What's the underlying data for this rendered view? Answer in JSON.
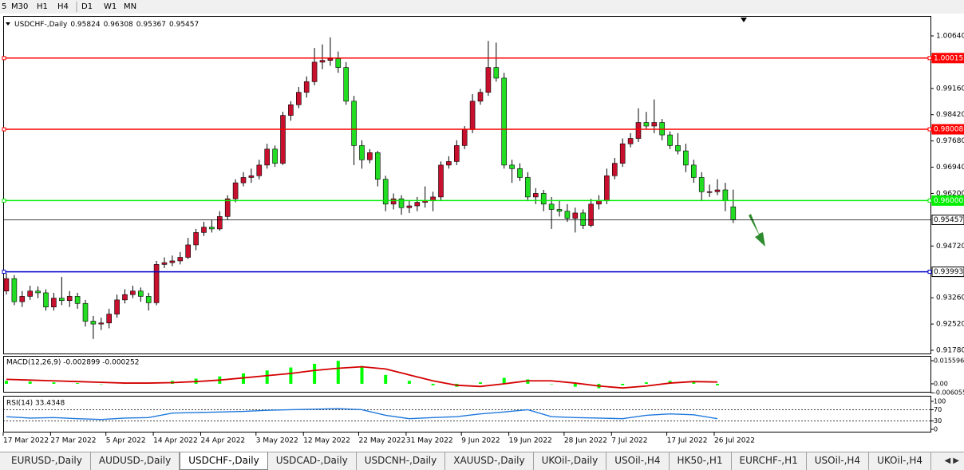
{
  "toolbar": {
    "buttons": [
      "5",
      "M30",
      "H1",
      "H4",
      "D1",
      "W1",
      "MN"
    ]
  },
  "chart": {
    "symbol": "USDCHF-,Daily",
    "candle_bull_color": "#c8102e",
    "candle_bear_color": "#22dd22",
    "ylim": [
      0.9169,
      1.0118
    ],
    "yticks": [
      {
        "value": 1.0064,
        "label": "1.00640"
      },
      {
        "value": 0.9916,
        "label": "0.99160"
      },
      {
        "value": 0.9842,
        "label": "0.98420"
      },
      {
        "value": 0.9768,
        "label": "0.97680"
      },
      {
        "value": 0.9694,
        "label": "0.96940"
      },
      {
        "value": 0.962,
        "label": "0.96200"
      },
      {
        "value": 0.9472,
        "label": "0.94720"
      },
      {
        "value": 0.9326,
        "label": "0.93260"
      },
      {
        "value": 0.9252,
        "label": "0.92520"
      },
      {
        "value": 0.9178,
        "label": "0.91780"
      }
    ],
    "levels": [
      {
        "value": 1.00015,
        "color": "#ff0000"
      },
      {
        "value": 0.98008,
        "color": "#ff0000"
      },
      {
        "value": 0.96,
        "label": "0.96000",
        "color": "#00ee00"
      },
      {
        "value": 0.93993,
        "color": "#0000cc"
      }
    ],
    "candles": [
      [
        0.9345,
        0.9395,
        0.9335,
        0.938
      ],
      [
        0.938,
        0.939,
        0.9305,
        0.9315
      ],
      [
        0.9315,
        0.9345,
        0.93,
        0.933
      ],
      [
        0.933,
        0.936,
        0.932,
        0.9345
      ],
      [
        0.9345,
        0.9358,
        0.9325,
        0.934
      ],
      [
        0.934,
        0.935,
        0.929,
        0.93
      ],
      [
        0.93,
        0.934,
        0.929,
        0.9325
      ],
      [
        0.9325,
        0.9385,
        0.9305,
        0.9318
      ],
      [
        0.9318,
        0.9345,
        0.93,
        0.933
      ],
      [
        0.933,
        0.934,
        0.9295,
        0.931
      ],
      [
        0.931,
        0.932,
        0.9245,
        0.926
      ],
      [
        0.926,
        0.9275,
        0.921,
        0.9252
      ],
      [
        0.9252,
        0.927,
        0.9235,
        0.9255
      ],
      [
        0.9255,
        0.9295,
        0.924,
        0.928
      ],
      [
        0.928,
        0.9335,
        0.927,
        0.932
      ],
      [
        0.932,
        0.935,
        0.931,
        0.9335
      ],
      [
        0.9335,
        0.936,
        0.9325,
        0.9345
      ],
      [
        0.9345,
        0.9355,
        0.9315,
        0.933
      ],
      [
        0.933,
        0.934,
        0.929,
        0.9312
      ],
      [
        0.9312,
        0.943,
        0.9305,
        0.942
      ],
      [
        0.942,
        0.944,
        0.941,
        0.9425
      ],
      [
        0.9425,
        0.9445,
        0.9415,
        0.943
      ],
      [
        0.943,
        0.9455,
        0.942,
        0.944
      ],
      [
        0.944,
        0.9495,
        0.9435,
        0.9475
      ],
      [
        0.9475,
        0.952,
        0.946,
        0.951
      ],
      [
        0.951,
        0.954,
        0.95,
        0.9525
      ],
      [
        0.9525,
        0.9545,
        0.951,
        0.952
      ],
      [
        0.952,
        0.957,
        0.9515,
        0.9555
      ],
      [
        0.9555,
        0.9615,
        0.9545,
        0.9605
      ],
      [
        0.9605,
        0.966,
        0.9595,
        0.965
      ],
      [
        0.965,
        0.968,
        0.964,
        0.9665
      ],
      [
        0.9665,
        0.969,
        0.965,
        0.967
      ],
      [
        0.967,
        0.9715,
        0.966,
        0.97
      ],
      [
        0.97,
        0.976,
        0.969,
        0.9745
      ],
      [
        0.9745,
        0.9755,
        0.9695,
        0.9705
      ],
      [
        0.9705,
        0.985,
        0.97,
        0.984
      ],
      [
        0.984,
        0.988,
        0.9825,
        0.987
      ],
      [
        0.987,
        0.992,
        0.986,
        0.9905
      ],
      [
        0.9905,
        0.995,
        0.989,
        0.9935
      ],
      [
        0.9935,
        1.003,
        0.9925,
        0.999
      ],
      [
        0.999,
        1.004,
        0.997,
        0.9995
      ],
      [
        0.9995,
        1.006,
        0.998,
        1.0
      ],
      [
        1.0,
        1.002,
        0.996,
        0.9975
      ],
      [
        0.9975,
        0.999,
        0.987,
        0.988
      ],
      [
        0.988,
        0.9895,
        0.97,
        0.9755
      ],
      [
        0.9755,
        0.977,
        0.969,
        0.9715
      ],
      [
        0.9715,
        0.9745,
        0.9705,
        0.9735
      ],
      [
        0.9735,
        0.974,
        0.964,
        0.966
      ],
      [
        0.966,
        0.967,
        0.957,
        0.959
      ],
      [
        0.959,
        0.962,
        0.9575,
        0.9605
      ],
      [
        0.9605,
        0.9615,
        0.956,
        0.958
      ],
      [
        0.958,
        0.96,
        0.9565,
        0.9585
      ],
      [
        0.9585,
        0.961,
        0.957,
        0.9595
      ],
      [
        0.9595,
        0.964,
        0.958,
        0.96
      ],
      [
        0.96,
        0.9625,
        0.957,
        0.961
      ],
      [
        0.961,
        0.971,
        0.96,
        0.97
      ],
      [
        0.97,
        0.9725,
        0.969,
        0.971
      ],
      [
        0.971,
        0.977,
        0.97,
        0.9755
      ],
      [
        0.9755,
        0.981,
        0.9745,
        0.98
      ],
      [
        0.98,
        0.99,
        0.979,
        0.988
      ],
      [
        0.988,
        0.9915,
        0.987,
        0.9905
      ],
      [
        0.9905,
        1.005,
        0.9895,
        0.9975
      ],
      [
        0.9975,
        1.0045,
        0.9935,
        0.9945
      ],
      [
        0.9945,
        0.996,
        0.969,
        0.97
      ],
      [
        0.97,
        0.9715,
        0.965,
        0.969
      ],
      [
        0.969,
        0.9705,
        0.9655,
        0.9665
      ],
      [
        0.9665,
        0.968,
        0.96,
        0.961
      ],
      [
        0.961,
        0.9635,
        0.959,
        0.962
      ],
      [
        0.962,
        0.963,
        0.957,
        0.959
      ],
      [
        0.959,
        0.961,
        0.952,
        0.9575
      ],
      [
        0.9575,
        0.96,
        0.9555,
        0.957
      ],
      [
        0.957,
        0.959,
        0.954,
        0.955
      ],
      [
        0.955,
        0.958,
        0.951,
        0.9565
      ],
      [
        0.9565,
        0.9575,
        0.952,
        0.953
      ],
      [
        0.953,
        0.9605,
        0.9525,
        0.959
      ],
      [
        0.959,
        0.9615,
        0.9575,
        0.96
      ],
      [
        0.96,
        0.969,
        0.959,
        0.967
      ],
      [
        0.967,
        0.972,
        0.966,
        0.9705
      ],
      [
        0.9705,
        0.9775,
        0.9695,
        0.976
      ],
      [
        0.976,
        0.979,
        0.975,
        0.9775
      ],
      [
        0.9775,
        0.986,
        0.9765,
        0.982
      ],
      [
        0.982,
        0.985,
        0.98,
        0.981
      ],
      [
        0.981,
        0.9885,
        0.979,
        0.982
      ],
      [
        0.982,
        0.983,
        0.977,
        0.9785
      ],
      [
        0.9785,
        0.9795,
        0.9745,
        0.9755
      ],
      [
        0.9755,
        0.979,
        0.973,
        0.974
      ],
      [
        0.974,
        0.976,
        0.968,
        0.97
      ],
      [
        0.97,
        0.9715,
        0.965,
        0.9665
      ],
      [
        0.9665,
        0.968,
        0.96,
        0.9625
      ],
      [
        0.9625,
        0.9645,
        0.961,
        0.9625
      ],
      [
        0.9625,
        0.966,
        0.9615,
        0.963
      ],
      [
        0.963,
        0.965,
        0.957,
        0.96
      ],
      [
        0.95824,
        0.96308,
        0.95367,
        0.95457
      ]
    ],
    "date_labels": [
      {
        "index": 0,
        "label": "17 Mar 2022"
      },
      {
        "index": 6,
        "label": "27 Mar 2022"
      },
      {
        "index": 13,
        "label": "5 Apr 2022"
      },
      {
        "index": 19,
        "label": "14 Apr 2022"
      },
      {
        "index": 25,
        "label": "24 Apr 2022"
      },
      {
        "index": 32,
        "label": "3 May 2022"
      },
      {
        "index": 38,
        "label": "12 May 2022"
      },
      {
        "index": 45,
        "label": "22 May 2022"
      },
      {
        "index": 51,
        "label": "31 May 2022"
      },
      {
        "index": 58,
        "label": "9 Jun 2022"
      },
      {
        "index": 64,
        "label": "19 Jun 2022"
      },
      {
        "index": 71,
        "label": "28 Jun 2022"
      },
      {
        "index": 77,
        "label": "7 Jul 2022"
      },
      {
        "index": 84,
        "label": "17 Jul 2022"
      },
      {
        "index": 90,
        "label": "26 Jul 2022"
      }
    ],
    "sample_index": [
      0,
      3,
      6,
      9,
      12,
      15,
      18,
      21,
      24,
      27,
      30,
      33,
      36,
      39,
      42,
      45,
      48,
      51,
      54,
      57,
      60,
      63,
      66,
      69,
      72,
      75,
      78,
      81,
      84,
      87,
      90
    ],
    "macd": {
      "label": "MACD(12,26,9) -0.002899 -0.000252",
      "ylim": [
        -0.0054,
        0.0183
      ],
      "yticks": [
        0.015596,
        {
          "value": 0,
          "label": "0.00"
        },
        -0.006055
      ],
      "histogram_color": "#00ff00",
      "signal_color": "#d40000",
      "histogram": [
        0.002,
        0.0015,
        0.001,
        0.0005,
        0,
        0.0002,
        0.0005,
        0.002,
        0.0035,
        0.005,
        0.007,
        0.009,
        0.011,
        0.0135,
        0.0155,
        0.012,
        0.006,
        0.002,
        -0.001,
        -0.002,
        0.001,
        0.004,
        0.003,
        0,
        -0.002,
        -0.003,
        -0.001,
        0.001,
        0.002,
        0.001,
        -0.001
      ],
      "signal": [
        0.003,
        0.0025,
        0.002,
        0.0015,
        0.001,
        0.0005,
        0.0005,
        0.0008,
        0.0015,
        0.0025,
        0.004,
        0.0055,
        0.007,
        0.009,
        0.0105,
        0.0115,
        0.01,
        0.006,
        0.002,
        -0.001,
        -0.0018,
        0,
        0.002,
        0.002,
        0.0005,
        -0.0015,
        -0.0028,
        -0.0015,
        0.0005,
        0.0015,
        0.0012
      ]
    },
    "rsi": {
      "label": "RSI(14) 33.4348",
      "ylim": [
        -8.6,
        117
      ],
      "yticks": [
        100,
        70,
        30,
        0
      ],
      "levels": [
        70,
        30
      ],
      "color": "#1e78dc",
      "values": [
        45,
        40,
        42,
        38,
        35,
        40,
        42,
        58,
        60,
        62,
        64,
        68,
        70,
        72,
        74,
        70,
        50,
        38,
        42,
        45,
        55,
        62,
        70,
        45,
        42,
        40,
        38,
        50,
        55,
        52,
        38
      ]
    }
  },
  "tabs": [
    "EURUSD-,Daily",
    "AUDUSD-,Daily",
    "USDCHF-,Daily",
    "USDCAD-,Daily",
    "USDCNH-,Daily",
    "XAUUSD-,Daily",
    "UKOil-,Daily",
    "USOil-,H4",
    "HK50-,H1",
    "EURCHF-,H1",
    "USOil-,H4",
    "UKOil-,H4"
  ],
  "active_tab": 2
}
